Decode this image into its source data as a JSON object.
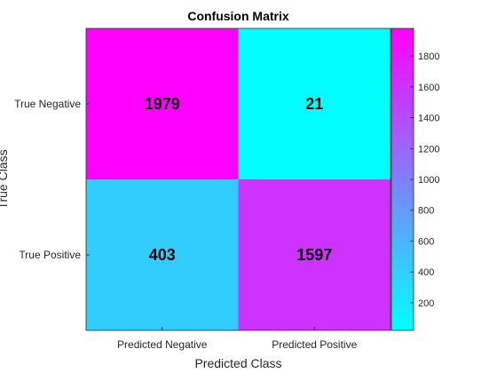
{
  "chart_data": {
    "type": "heatmap",
    "title": "Confusion Matrix",
    "xlabel": "Predicted Class",
    "ylabel": "True Class",
    "x_categories": [
      "Predicted Negative",
      "Predicted Positive"
    ],
    "y_categories": [
      "True Negative",
      "True Positive"
    ],
    "values": [
      [
        1979,
        21
      ],
      [
        403,
        1597
      ]
    ],
    "colormap": "cool",
    "colormap_colors": [
      "#00ffff",
      "#ff00ff"
    ],
    "colorbar": {
      "range": [
        21,
        1979
      ],
      "ticks": [
        200,
        400,
        600,
        800,
        1000,
        1200,
        1400,
        1600,
        1800
      ]
    },
    "grid": false
  }
}
